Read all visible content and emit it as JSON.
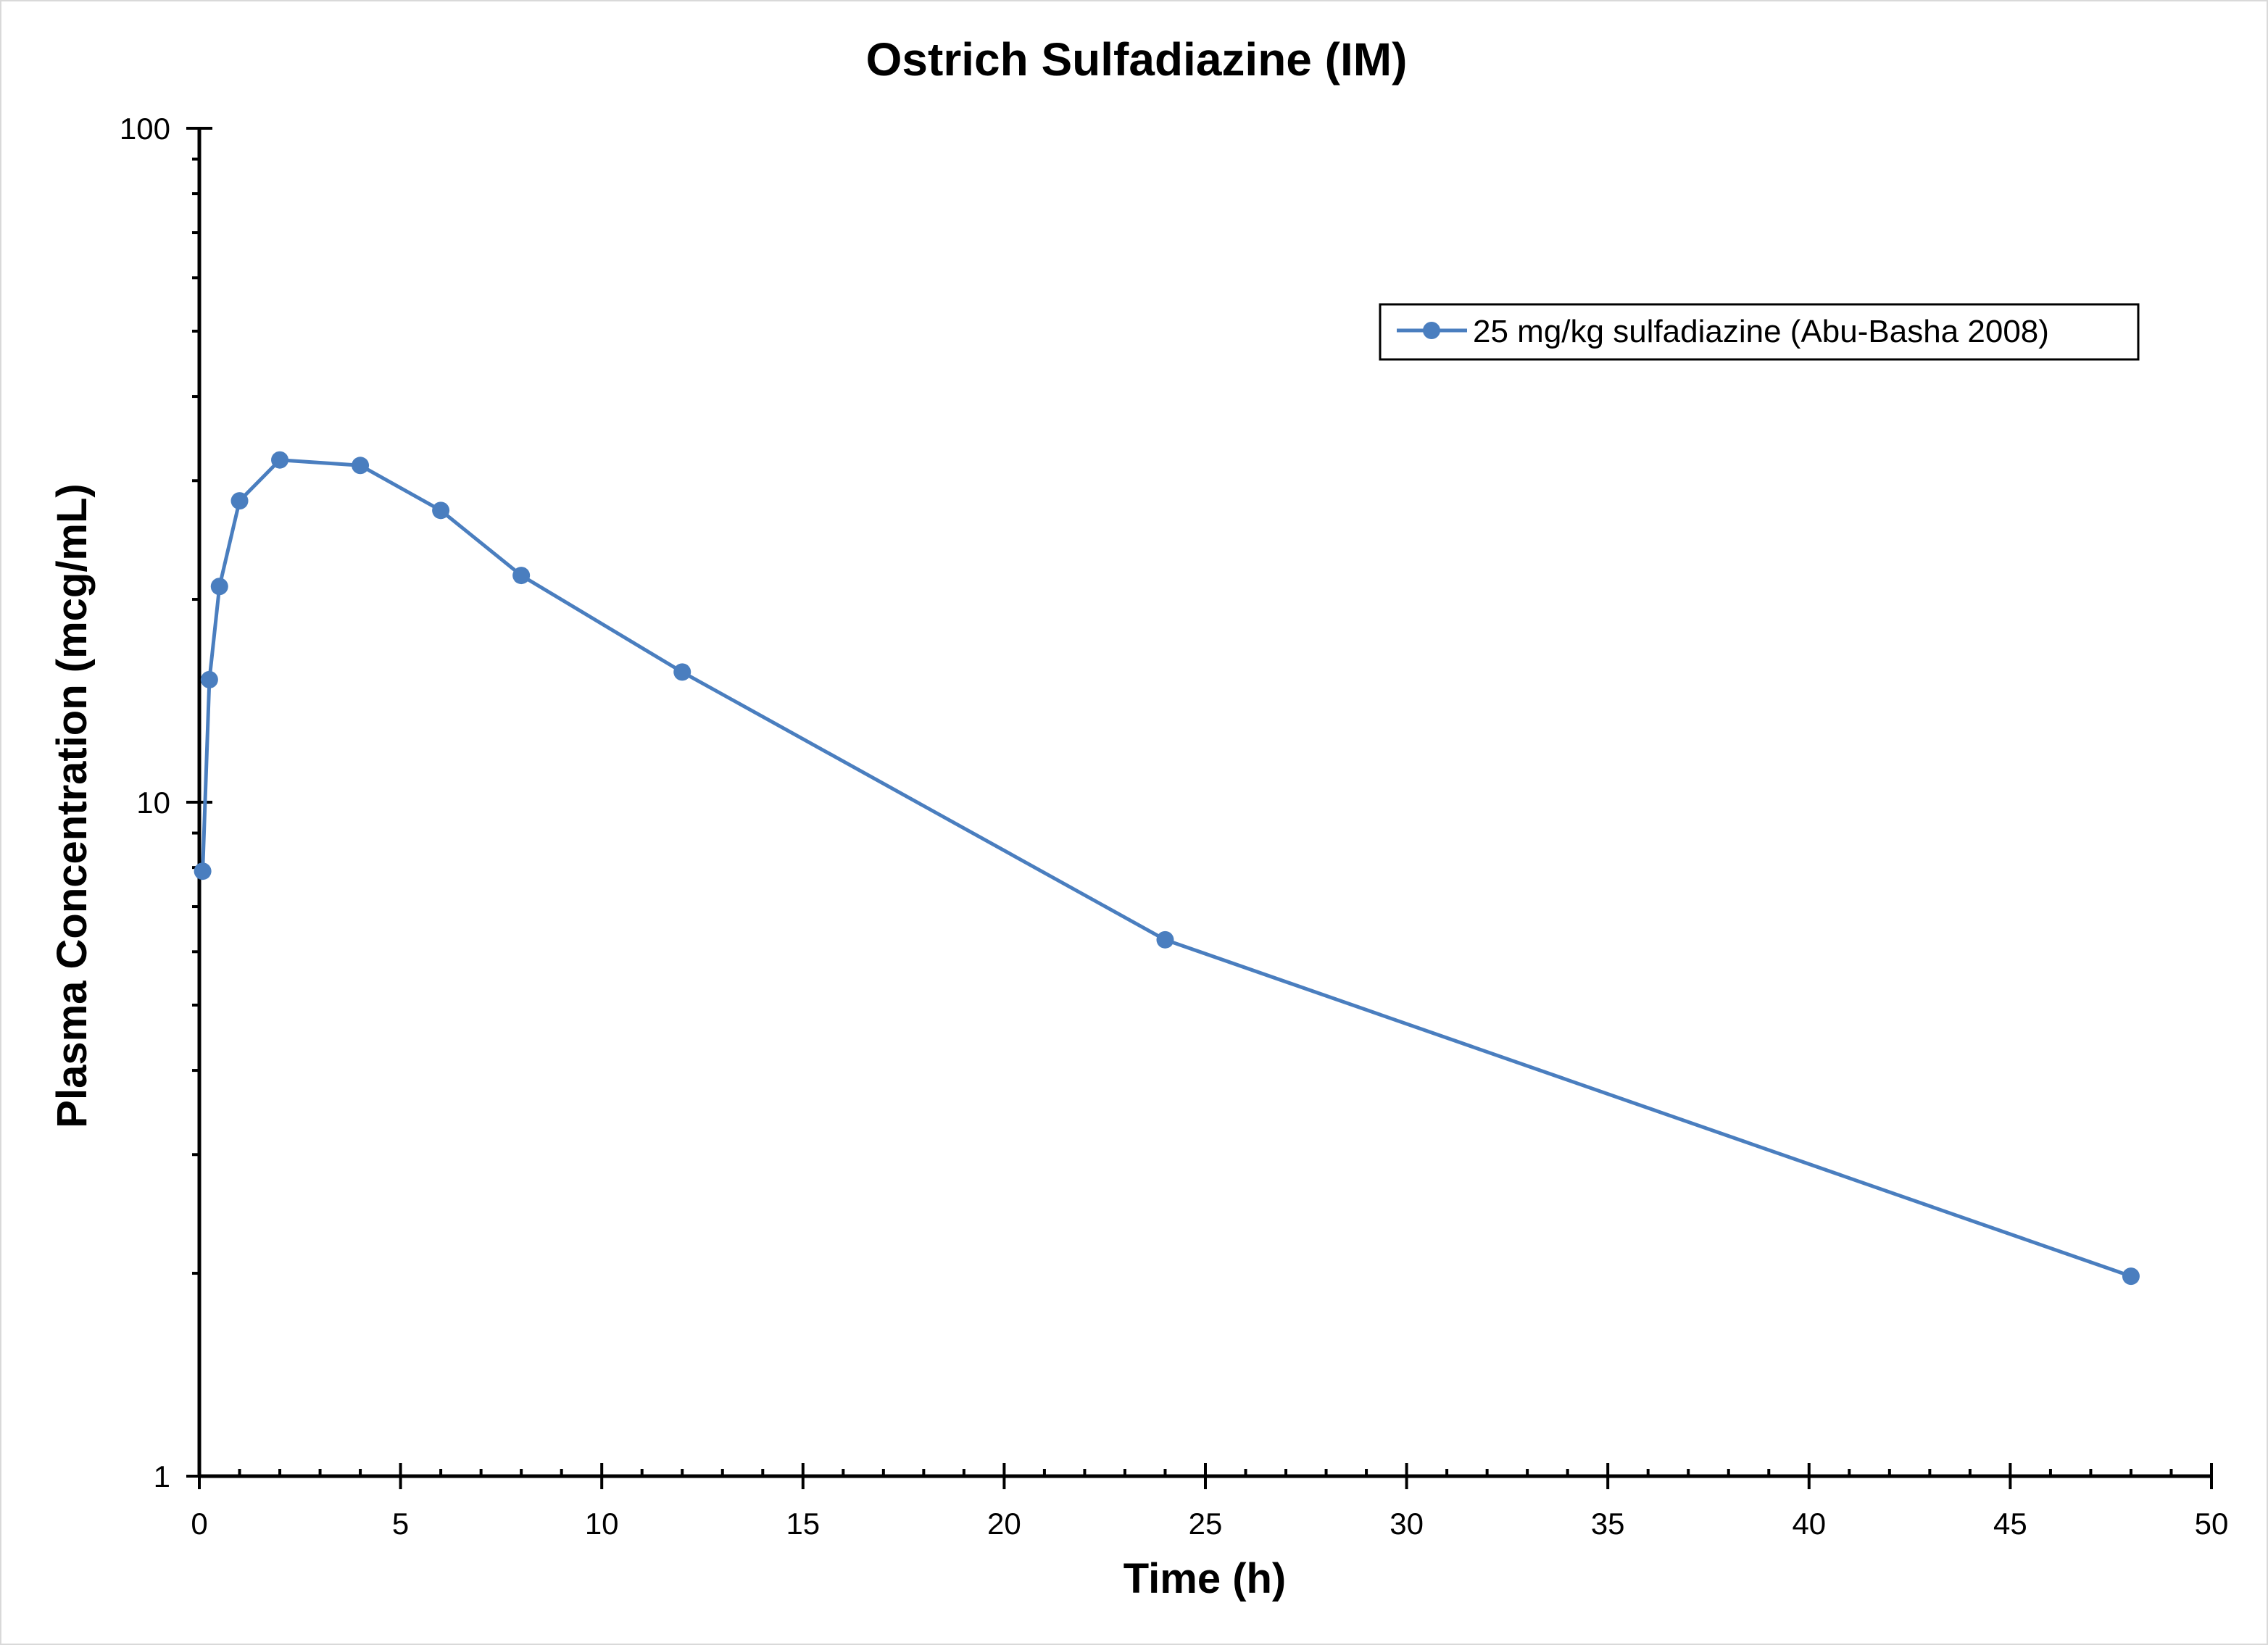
{
  "chart_data": {
    "type": "line",
    "title": "Ostrich Sulfadiazine (IM)",
    "xlabel": "Time (h)",
    "ylabel": "Plasma Concentration (mcg/mL)",
    "xlim": [
      0,
      50
    ],
    "ylim": [
      1,
      100
    ],
    "yscale": "log",
    "x_major_ticks": [
      0,
      5,
      10,
      15,
      20,
      25,
      30,
      35,
      40,
      45,
      50
    ],
    "x_minor_tick_step": 1,
    "y_major_ticks": [
      1,
      10,
      100
    ],
    "x_tick_labels": [
      "0",
      "5",
      "10",
      "15",
      "20",
      "25",
      "30",
      "35",
      "40",
      "45",
      "50"
    ],
    "y_tick_labels": [
      "1",
      "10",
      "100"
    ],
    "grid": false,
    "legend_position": "top-right",
    "series": [
      {
        "name": "25 mg/kg sulfadiazine (Abu-Basha 2008)",
        "color": "#4a7ebf",
        "marker": "circle",
        "x": [
          0.083,
          0.25,
          0.5,
          1,
          2,
          4,
          6,
          8,
          12,
          24,
          48
        ],
        "y": [
          7.9,
          15.2,
          20.9,
          28.0,
          32.2,
          31.6,
          27.1,
          21.7,
          15.6,
          6.25,
          1.98
        ]
      }
    ]
  }
}
